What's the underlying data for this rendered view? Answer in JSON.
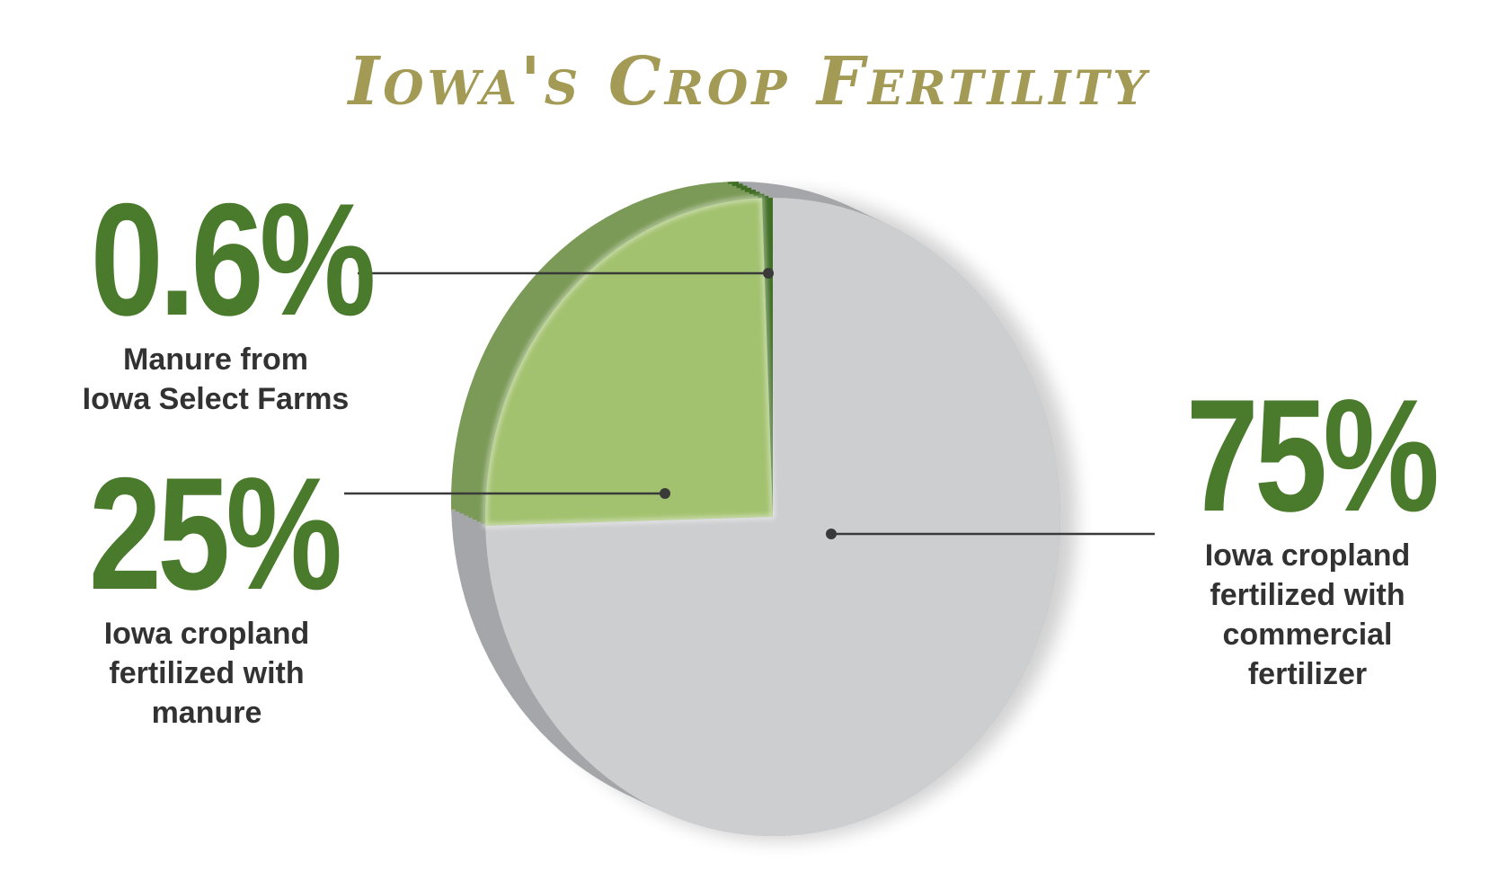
{
  "title": "Iowa's Crop Fertility",
  "colors": {
    "title": "#a39a55",
    "percent": "#4a7a2b",
    "manure_slice": "#a3c26f",
    "manure_side": "#7b9a57",
    "select_farms_slice": "#3f6e24",
    "commercial_slice": "#cdced0",
    "commercial_side": "#a5a6a9"
  },
  "stats": {
    "manure_select": {
      "percent": "0.6%",
      "label_line1": "Manure from",
      "label_line2": "Iowa Select Farms"
    },
    "manure": {
      "percent": "25%",
      "label_line1": "Iowa cropland",
      "label_line2": "fertilized with",
      "label_line3": "manure"
    },
    "commercial": {
      "percent": "75%",
      "label_line1": "Iowa cropland",
      "label_line2": "fertilized with",
      "label_line3": "commercial",
      "label_line4": "fertilizer"
    }
  },
  "chart_data": {
    "type": "pie",
    "title": "Iowa's Crop Fertility",
    "slices": [
      {
        "label": "Manure from Iowa Select Farms",
        "value": 0.6,
        "color": "#3f6e24"
      },
      {
        "label": "Iowa cropland fertilized with manure",
        "value": 25,
        "color": "#a3c26f"
      },
      {
        "label": "Iowa cropland fertilized with commercial fertilizer",
        "value": 75,
        "color": "#cdced0"
      }
    ]
  }
}
